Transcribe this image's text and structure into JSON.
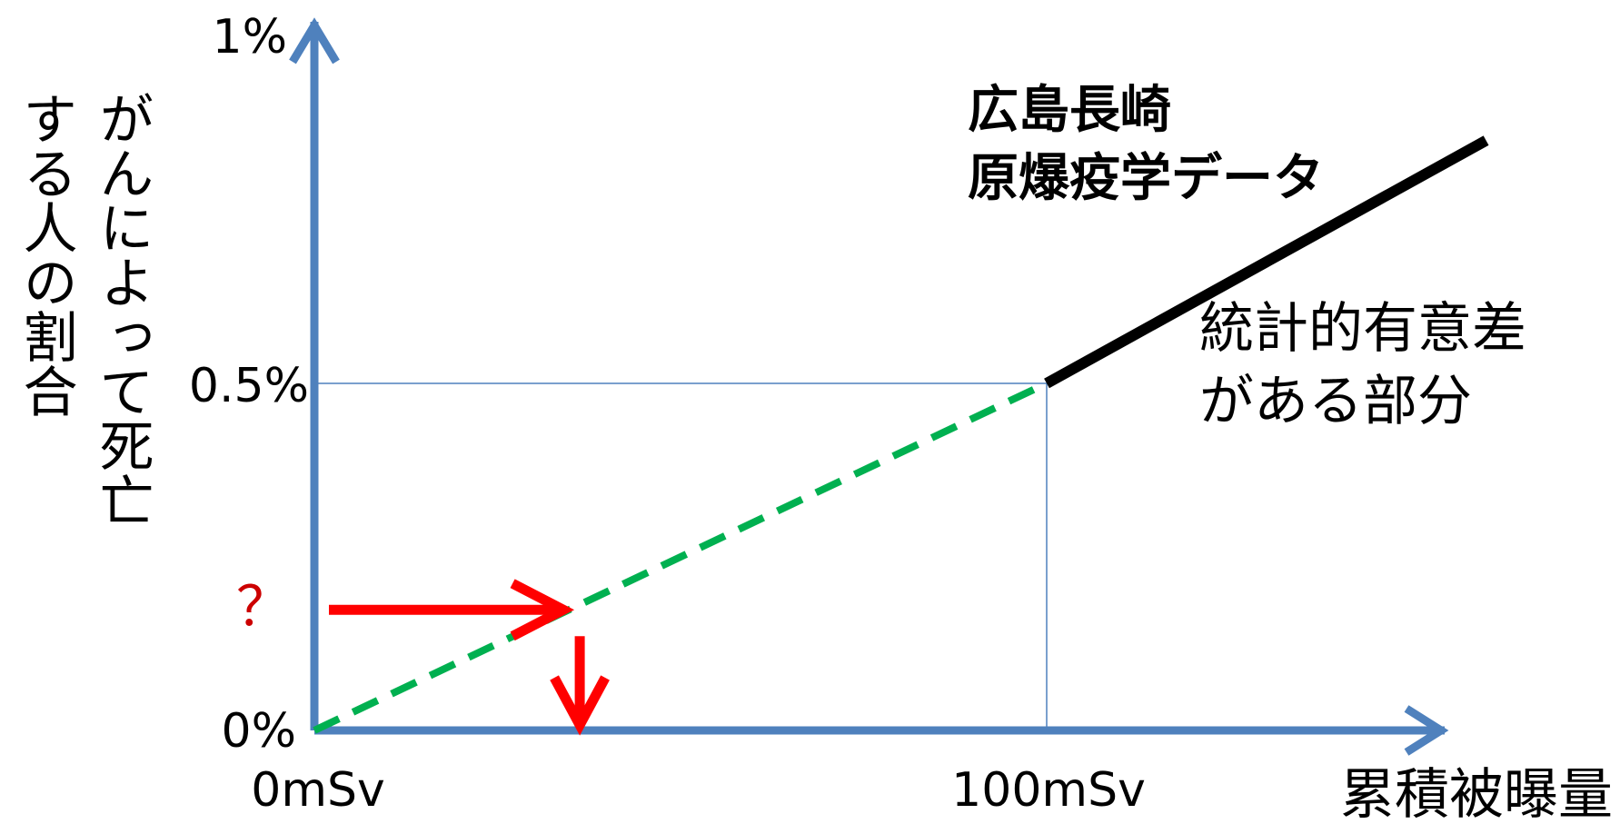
{
  "chart_data": {
    "type": "line",
    "title": "",
    "xlabel": "累積被曝量",
    "ylabel": "がんによって死亡する人の割合",
    "ylabel_lines": [
      "がんによって死亡",
      "する人の割合"
    ],
    "x_ticks": [
      "0mSv",
      "100mSv"
    ],
    "y_ticks": [
      "0%",
      "0.5%",
      "1%"
    ],
    "xlim": [
      0,
      100
    ],
    "ylim": [
      0,
      1
    ],
    "series": [
      {
        "style": "dashed",
        "color": "#00b050",
        "x": [
          0,
          100
        ],
        "y": [
          0,
          0.5
        ]
      },
      {
        "style": "solid",
        "color": "#000000",
        "x": [
          100,
          160
        ],
        "y": [
          0.5,
          0.85
        ]
      }
    ],
    "reference_lines": {
      "x": 100,
      "y": 0.5
    },
    "probe": {
      "x": 35,
      "y": 0.175,
      "label": "？",
      "color": "#ff0000"
    },
    "annotations": {
      "data_source": [
        "広島長崎",
        "原爆疫学データ"
      ],
      "significance": [
        "統計的有意差",
        "がある部分"
      ]
    },
    "axis_color": "#4f81bd",
    "grid": false
  }
}
